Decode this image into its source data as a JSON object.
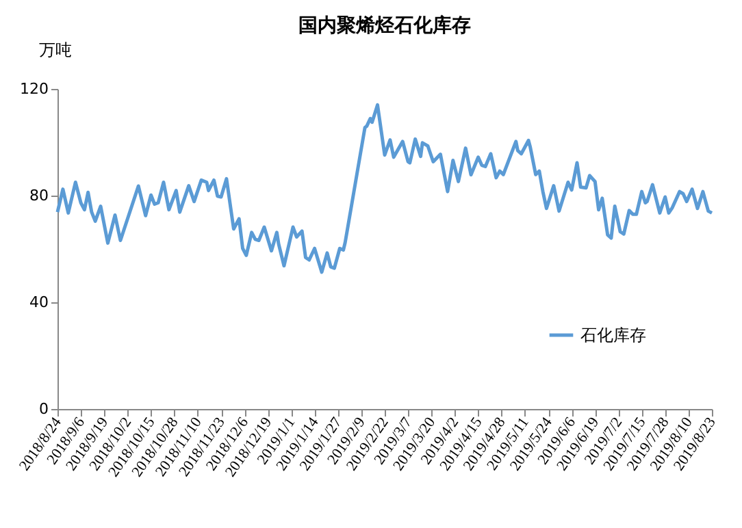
{
  "chart_data": {
    "type": "line",
    "title": "国内聚烯烃石化库存",
    "ylabel": "万吨",
    "x": [
      "2018-08-24",
      "2018-08-27",
      "2018-08-30",
      "2018-09-03",
      "2018-09-06",
      "2018-09-08",
      "2018-09-10",
      "2018-09-12",
      "2018-09-14",
      "2018-09-17",
      "2018-09-21",
      "2018-09-25",
      "2018-09-28",
      "2018-10-08",
      "2018-10-12",
      "2018-10-15",
      "2018-10-17",
      "2018-10-19",
      "2018-10-22",
      "2018-10-25",
      "2018-10-29",
      "2018-10-31",
      "2018-11-05",
      "2018-11-08",
      "2018-11-12",
      "2018-11-15",
      "2018-11-16",
      "2018-11-19",
      "2018-11-21",
      "2018-11-23",
      "2018-11-26",
      "2018-11-30",
      "2018-12-03",
      "2018-12-05",
      "2018-12-07",
      "2018-12-10",
      "2018-12-12",
      "2018-12-14",
      "2018-12-17",
      "2018-12-21",
      "2018-12-24",
      "2018-12-25",
      "2018-12-28",
      "2019-01-02",
      "2019-01-04",
      "2019-01-07",
      "2019-01-09",
      "2019-01-11",
      "2019-01-14",
      "2019-01-18",
      "2019-01-21",
      "2019-01-23",
      "2019-01-25",
      "2019-01-28",
      "2019-01-30",
      "2019-01-31",
      "2019-02-11",
      "2019-02-12",
      "2019-02-14",
      "2019-02-15",
      "2019-02-18",
      "2019-02-22",
      "2019-02-25",
      "2019-02-27",
      "2019-03-04",
      "2019-03-07",
      "2019-03-08",
      "2019-03-11",
      "2019-03-14",
      "2019-03-15",
      "2019-03-18",
      "2019-03-21",
      "2019-03-25",
      "2019-03-29",
      "2019-04-01",
      "2019-04-04",
      "2019-04-08",
      "2019-04-11",
      "2019-04-15",
      "2019-04-17",
      "2019-04-19",
      "2019-04-22",
      "2019-04-25",
      "2019-04-27",
      "2019-04-29",
      "2019-05-06",
      "2019-05-07",
      "2019-05-09",
      "2019-05-13",
      "2019-05-14",
      "2019-05-17",
      "2019-05-19",
      "2019-05-21",
      "2019-05-23",
      "2019-05-27",
      "2019-05-30",
      "2019-06-04",
      "2019-06-06",
      "2019-06-09",
      "2019-06-11",
      "2019-06-14",
      "2019-06-16",
      "2019-06-19",
      "2019-06-21",
      "2019-06-23",
      "2019-06-26",
      "2019-06-28",
      "2019-06-30",
      "2019-07-03",
      "2019-07-05",
      "2019-07-08",
      "2019-07-10",
      "2019-07-12",
      "2019-07-15",
      "2019-07-17",
      "2019-07-18",
      "2019-07-21",
      "2019-07-25",
      "2019-07-28",
      "2019-07-30",
      "2019-08-01",
      "2019-08-05",
      "2019-08-07",
      "2019-08-09",
      "2019-08-12",
      "2019-08-15",
      "2019-08-18",
      "2019-08-21",
      "2019-08-23"
    ],
    "series": [
      {
        "name": "石化库存",
        "color": "#5b9bd5",
        "values": [
          73.8,
          82.4,
          73.5,
          85,
          77.3,
          74.7,
          81.2,
          73.8,
          70.4,
          76,
          62.2,
          72.7,
          63.2,
          83.6,
          72.5,
          80.2,
          76.8,
          77.3,
          85,
          74.7,
          81.9,
          73.8,
          83.7,
          77.8,
          85.8,
          85,
          81.9,
          85.8,
          79.8,
          79.5,
          86.3,
          67.5,
          71.3,
          60.2,
          57.6,
          66.2,
          63.6,
          63.2,
          68.2,
          59.3,
          66.2,
          61.9,
          53.7,
          68.2,
          64.5,
          66.7,
          56.8,
          55.9,
          60.2,
          51.3,
          58.5,
          53.3,
          52.8,
          60.2,
          59.6,
          62.4,
          105.5,
          106,
          108.9,
          107.5,
          114,
          95.2,
          100.9,
          94.4,
          100.3,
          92.7,
          92.3,
          101.2,
          94.7,
          99.8,
          98.6,
          92.7,
          95.5,
          81.5,
          93.2,
          85.3,
          97.8,
          87.8,
          94.4,
          91.4,
          90.9,
          95.7,
          86.7,
          89.2,
          87.9,
          100.3,
          96.9,
          95.7,
          100.7,
          98.1,
          87.9,
          89.2,
          81.5,
          75.2,
          83.7,
          74.2,
          85,
          82.1,
          92.3,
          83.2,
          82.9,
          87.5,
          85.3,
          74.7,
          79,
          65.3,
          64.1,
          76,
          66.5,
          65.6,
          74.4,
          73,
          73,
          81.5,
          77.3,
          77.8,
          84.1,
          73.5,
          79.5,
          73.5,
          75.5,
          81.5,
          80.7,
          77.8,
          82.4,
          75.2,
          81.5,
          74.2,
          73.5
        ]
      }
    ],
    "xlim": [
      "2018-08-24",
      "2019-08-23"
    ],
    "xticks": [
      {
        "value": "2018-08-24",
        "label": "2018/8/24"
      },
      {
        "value": "2018-09-06",
        "label": "2018/9/6"
      },
      {
        "value": "2018-09-19",
        "label": "2018/9/19"
      },
      {
        "value": "2018-10-02",
        "label": "2018/10/2"
      },
      {
        "value": "2018-10-15",
        "label": "2018/10/15"
      },
      {
        "value": "2018-10-28",
        "label": "2018/10/28"
      },
      {
        "value": "2018-11-10",
        "label": "2018/11/10"
      },
      {
        "value": "2018-11-23",
        "label": "2018/11/23"
      },
      {
        "value": "2018-12-06",
        "label": "2018/12/6"
      },
      {
        "value": "2018-12-19",
        "label": "2018/12/19"
      },
      {
        "value": "2019-01-01",
        "label": "2019/1/1"
      },
      {
        "value": "2019-01-14",
        "label": "2019/1/14"
      },
      {
        "value": "2019-01-27",
        "label": "2019/1/27"
      },
      {
        "value": "2019-02-09",
        "label": "2019/2/9"
      },
      {
        "value": "2019-02-22",
        "label": "2019/2/22"
      },
      {
        "value": "2019-03-07",
        "label": "2019/3/7"
      },
      {
        "value": "2019-03-20",
        "label": "2019/3/20"
      },
      {
        "value": "2019-04-02",
        "label": "2019/4/2"
      },
      {
        "value": "2019-04-15",
        "label": "2019/4/15"
      },
      {
        "value": "2019-04-28",
        "label": "2019/4/28"
      },
      {
        "value": "2019-05-11",
        "label": "2019/5/11"
      },
      {
        "value": "2019-05-24",
        "label": "2019/5/24"
      },
      {
        "value": "2019-06-06",
        "label": "2019/6/6"
      },
      {
        "value": "2019-06-19",
        "label": "2019/6/19"
      },
      {
        "value": "2019-07-02",
        "label": "2019/7/2"
      },
      {
        "value": "2019-07-15",
        "label": "2019/7/15"
      },
      {
        "value": "2019-07-28",
        "label": "2019/7/28"
      },
      {
        "value": "2019-08-10",
        "label": "2019/8/10"
      },
      {
        "value": "2019-08-23",
        "label": "2019/8/23"
      }
    ],
    "ylim": [
      0,
      120
    ],
    "yticks": [
      0,
      40,
      80,
      120
    ],
    "grid": false,
    "legend": "bottom right",
    "marker": "none",
    "line_style": "solid"
  }
}
